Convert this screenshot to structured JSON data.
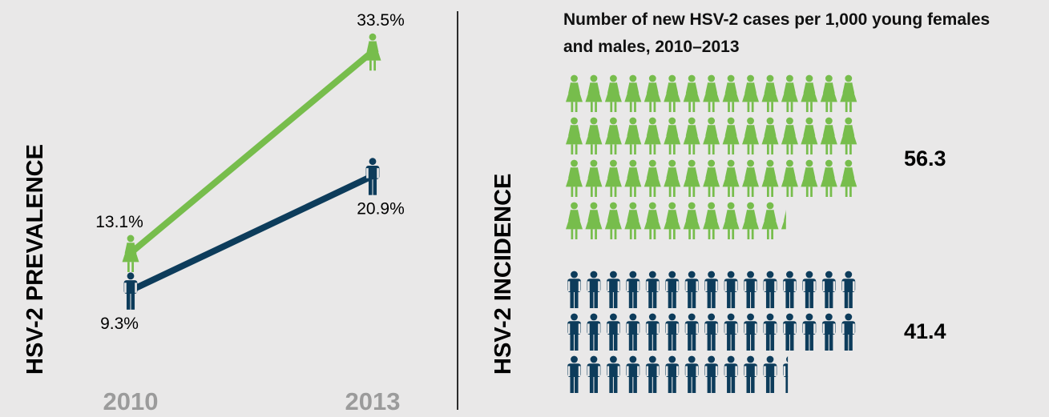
{
  "colors": {
    "background": "#e9e8e8",
    "female": "#77bd4c",
    "male": "#0d3c5b",
    "year_label": "#9b9b9b",
    "text": "#000000"
  },
  "icons": {
    "female": "female-person-icon",
    "male": "male-person-icon"
  },
  "chart_data": [
    {
      "type": "line",
      "ylabel": "HSV-2 PREVALENCE",
      "categories": [
        "2010",
        "2013"
      ],
      "series": [
        {
          "key": "female",
          "values": [
            13.1,
            33.5
          ],
          "labels": [
            "13.1%",
            "33.5%"
          ]
        },
        {
          "key": "male",
          "values": [
            9.3,
            20.9
          ],
          "labels": [
            "9.3%",
            "20.9%"
          ]
        }
      ]
    },
    {
      "type": "pictogram",
      "title": "Number of new HSV-2 cases per 1,000 young females and males, 2010–2013",
      "ylabel": "HSV-2 INCIDENCE",
      "icons_per_row": 15,
      "series": [
        {
          "key": "female",
          "value": 56.3,
          "label": "56.3"
        },
        {
          "key": "male",
          "value": 41.4,
          "label": "41.4"
        }
      ]
    }
  ]
}
